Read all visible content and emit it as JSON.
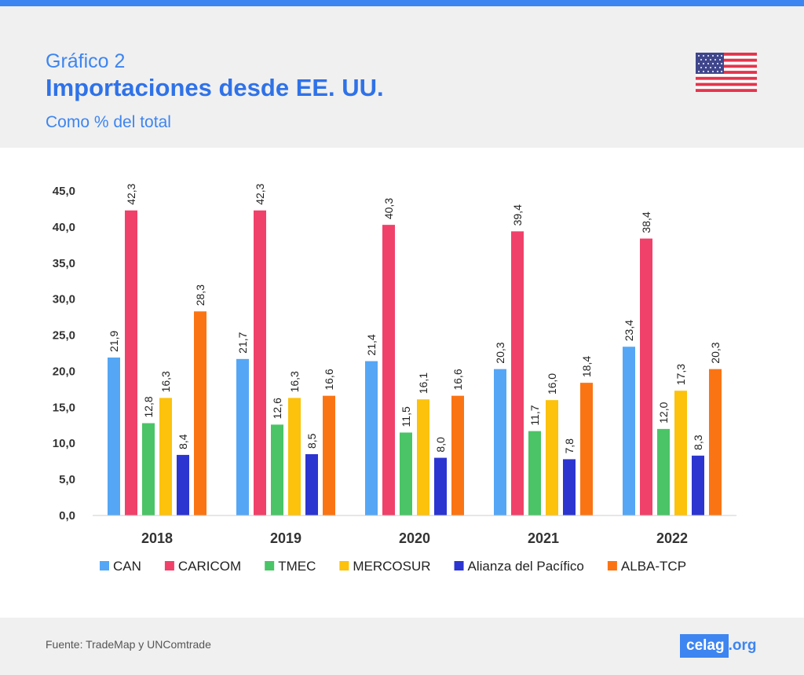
{
  "header": {
    "kicker": "Gráfico 2",
    "title": "Importaciones desde EE. UU.",
    "subtitle": "Como % del total"
  },
  "footer": {
    "source": "Fuente: TradeMap y UNComtrade",
    "logo_main": "celag",
    "logo_ext": ".org"
  },
  "colors": {
    "accent": "#3d85f0",
    "header_bg": "#f0f0f0"
  },
  "icons": {
    "flag": "usa-flag-icon"
  },
  "chart_data": {
    "type": "bar",
    "title": "Importaciones desde EE. UU.",
    "subtitle": "Como % del total",
    "categories": [
      "2018",
      "2019",
      "2020",
      "2021",
      "2022"
    ],
    "series": [
      {
        "name": "CAN",
        "color": "#55a6f5",
        "values": [
          21.9,
          21.7,
          21.4,
          20.3,
          23.4
        ],
        "labels": [
          "21,9",
          "21,7",
          "21,4",
          "20,3",
          "23,4"
        ]
      },
      {
        "name": "CARICOM",
        "color": "#f0416a",
        "values": [
          42.3,
          42.3,
          40.3,
          39.4,
          38.4
        ],
        "labels": [
          "42,3",
          "42,3",
          "40,3",
          "39,4",
          "38,4"
        ]
      },
      {
        "name": "TMEC",
        "color": "#4ac466",
        "values": [
          12.8,
          12.6,
          11.5,
          11.7,
          12.0
        ],
        "labels": [
          "12,8",
          "12,6",
          "11,5",
          "11,7",
          "12,0"
        ]
      },
      {
        "name": "MERCOSUR",
        "color": "#fcc20c",
        "values": [
          16.3,
          16.3,
          16.1,
          16.0,
          17.3
        ],
        "labels": [
          "16,3",
          "16,3",
          "16,1",
          "16,0",
          "17,3"
        ]
      },
      {
        "name": "Alianza del Pacífico",
        "color": "#2c35d0",
        "values": [
          8.4,
          8.5,
          8.0,
          7.8,
          8.3
        ],
        "labels": [
          "8,4",
          "8,5",
          "8,0",
          "7,8",
          "8,3"
        ]
      },
      {
        "name": "ALBA-TCP",
        "color": "#fb7414",
        "values": [
          28.3,
          16.6,
          16.6,
          18.4,
          20.3
        ],
        "labels": [
          "28,3",
          "16,6",
          "16,6",
          "18,4",
          "20,3"
        ]
      }
    ],
    "ylim": [
      0,
      45
    ],
    "yticks": [
      0,
      5,
      10,
      15,
      20,
      25,
      30,
      35,
      40,
      45
    ],
    "ytick_labels": [
      "0,0",
      "5,0",
      "10,0",
      "15,0",
      "20,0",
      "25,0",
      "30,0",
      "35,0",
      "40,0",
      "45,0"
    ],
    "grid": false,
    "legend_position": "bottom"
  }
}
